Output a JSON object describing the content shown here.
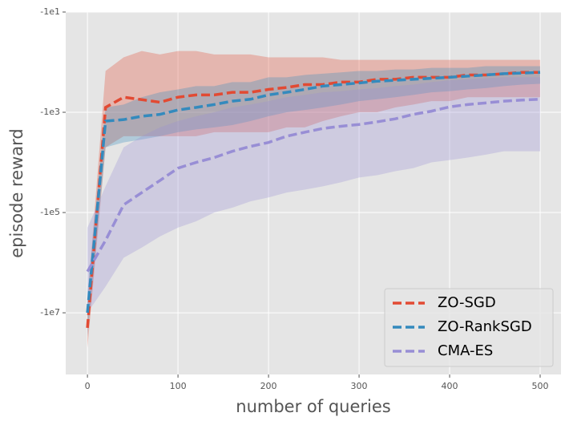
{
  "chart_data": {
    "type": "line",
    "yscale": "neglog",
    "xlabel": "number of queries",
    "ylabel": "episode reward",
    "x": [
      0,
      20,
      40,
      60,
      80,
      100,
      120,
      140,
      160,
      180,
      200,
      220,
      240,
      260,
      280,
      300,
      320,
      340,
      360,
      380,
      400,
      420,
      440,
      460,
      480,
      500
    ],
    "xlim": [
      -24,
      523
    ],
    "xticks": [
      0,
      100,
      200,
      300,
      400,
      500
    ],
    "ylim": [
      -170000000,
      -10
    ],
    "yticks": [
      {
        "value": -10,
        "label": "-1e1"
      },
      {
        "value": -1000,
        "label": "-1e3"
      },
      {
        "value": -100000,
        "label": "-1e5"
      },
      {
        "value": -10000000,
        "label": "-1e7"
      }
    ],
    "grid": true,
    "legend": "lower right",
    "series": [
      {
        "name": "ZO-SGD",
        "color": "#E24A33",
        "values": [
          -20000000,
          -800,
          -500,
          -560,
          -630,
          -500,
          -450,
          -450,
          -400,
          -400,
          -350,
          -320,
          -280,
          -280,
          -250,
          -250,
          -220,
          -220,
          -200,
          -200,
          -200,
          -180,
          -180,
          -170,
          -160,
          -160
        ],
        "upper": [
          -6000000,
          -150,
          -80,
          -60,
          -70,
          -60,
          -60,
          -70,
          -70,
          -70,
          -80,
          -80,
          -80,
          -80,
          -90,
          -90,
          -90,
          -90,
          -90,
          -90,
          -90,
          -90,
          -90,
          -90,
          -90,
          -90
        ],
        "lower": [
          -50000000,
          -5000,
          -3000,
          -3000,
          -3000,
          -3000,
          -3000,
          -2500,
          -2500,
          -2500,
          -2500,
          -2000,
          -2000,
          -1500,
          -1200,
          -1000,
          -1000,
          -800,
          -700,
          -600,
          -600,
          -500,
          -500,
          -500,
          -500,
          -500
        ]
      },
      {
        "name": "ZO-RankSGD",
        "color": "#348ABD",
        "values": [
          -10000000,
          -1500,
          -1400,
          -1200,
          -1100,
          -900,
          -800,
          -700,
          -600,
          -550,
          -450,
          -400,
          -350,
          -300,
          -280,
          -260,
          -240,
          -230,
          -220,
          -210,
          -200,
          -190,
          -180,
          -170,
          -165,
          -160
        ],
        "upper": [
          -4000000,
          -800,
          -700,
          -500,
          -400,
          -350,
          -300,
          -300,
          -250,
          -250,
          -200,
          -200,
          -180,
          -170,
          -160,
          -150,
          -150,
          -140,
          -140,
          -130,
          -130,
          -130,
          -120,
          -120,
          -120,
          -120
        ],
        "lower": [
          -30000000,
          -5000,
          -4000,
          -3500,
          -3000,
          -2500,
          -2200,
          -2000,
          -1800,
          -1500,
          -1200,
          -1000,
          -900,
          -800,
          -700,
          -600,
          -550,
          -500,
          -450,
          -400,
          -380,
          -350,
          -330,
          -300,
          -280,
          -270
        ]
      },
      {
        "name": "CMA-ES",
        "color": "#988ED5",
        "values": [
          -1500000,
          -360000,
          -70000,
          -40000,
          -23000,
          -13000,
          -10000,
          -8000,
          -6000,
          -4800,
          -4000,
          -3000,
          -2500,
          -2100,
          -1900,
          -1750,
          -1550,
          -1350,
          -1100,
          -950,
          -780,
          -700,
          -650,
          -600,
          -570,
          -550
        ],
        "upper": [
          -200000,
          -30000,
          -5000,
          -3000,
          -2000,
          -1500,
          -1200,
          -1000,
          -800,
          -700,
          -600,
          -500,
          -450,
          -400,
          -380,
          -350,
          -330,
          -300,
          -280,
          -250,
          -230,
          -220,
          -210,
          -200,
          -200,
          -200
        ],
        "lower": [
          -10000000,
          -3000000,
          -800000,
          -500000,
          -300000,
          -200000,
          -150000,
          -100000,
          -80000,
          -60000,
          -50000,
          -40000,
          -35000,
          -30000,
          -25000,
          -20000,
          -18000,
          -15000,
          -13000,
          -10000,
          -9000,
          -8000,
          -7000,
          -6000,
          -6000,
          -6000
        ]
      }
    ]
  }
}
